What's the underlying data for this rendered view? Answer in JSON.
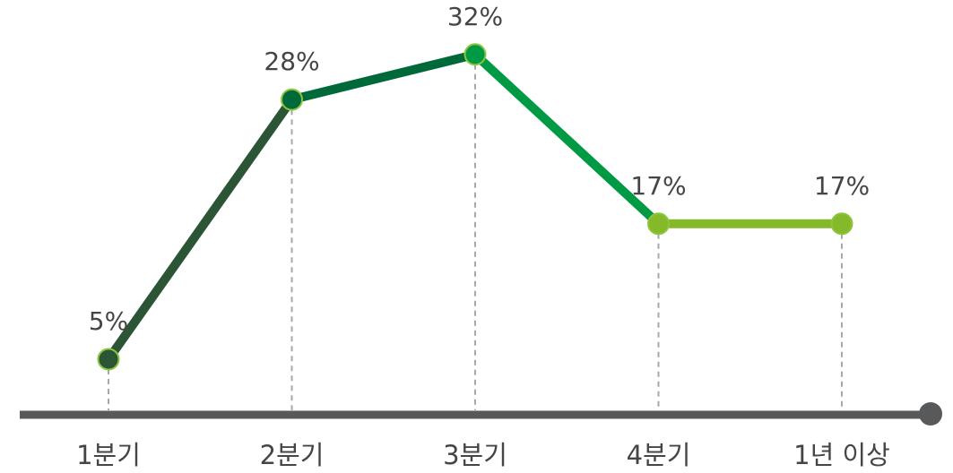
{
  "chart_data": {
    "type": "line",
    "categories": [
      "1분기",
      "2분기",
      "3분기",
      "4분기",
      "1년 이상"
    ],
    "values": [
      5,
      28,
      32,
      17,
      17
    ],
    "value_labels": [
      "5%",
      "28%",
      "32%",
      "17%",
      "17%"
    ],
    "colors": [
      "#2b5535",
      "#00693a",
      "#009a44",
      "#86b92a",
      "#86b92a"
    ],
    "ylim": [
      0,
      35
    ]
  }
}
